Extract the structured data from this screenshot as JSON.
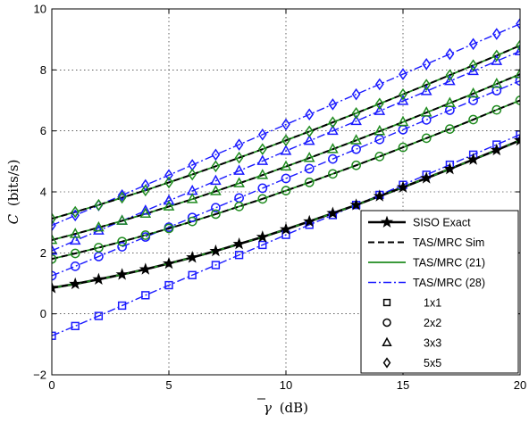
{
  "chart_data": {
    "type": "line",
    "title": "",
    "xlabel_symbol": "γ",
    "xlabel_unit": "(dB)",
    "ylabel_symbol": "C",
    "ylabel_unit": "(bits/s)",
    "xlim": [
      0,
      20
    ],
    "ylim": [
      -2,
      10
    ],
    "xticks": [
      0,
      5,
      10,
      15,
      20
    ],
    "yticks": [
      -2,
      0,
      2,
      4,
      6,
      8,
      10
    ],
    "grid": true,
    "legend_position": "bottom-right",
    "x": [
      0,
      1,
      2,
      3,
      4,
      5,
      6,
      7,
      8,
      9,
      10,
      11,
      12,
      13,
      14,
      15,
      16,
      17,
      18,
      19,
      20
    ],
    "colors": {
      "siso": "#000000",
      "tas_sim": "#000000",
      "tas_21": "#1f8b1f",
      "tas_28": "#1a1aff"
    },
    "legend": [
      {
        "label": "SISO Exact",
        "style": "siso"
      },
      {
        "label": "TAS/MRC Sim",
        "style": "sim"
      },
      {
        "label": "TAS/MRC (21)",
        "style": "eq21"
      },
      {
        "label": "TAS/MRC (28)",
        "style": "eq28"
      },
      {
        "label": "1x1",
        "style": "square"
      },
      {
        "label": "2x2",
        "style": "circle"
      },
      {
        "label": "3x3",
        "style": "triangle"
      },
      {
        "label": "5x5",
        "style": "diamond"
      }
    ],
    "groups": [
      {
        "config": "1x1",
        "marker": "square",
        "exact": [
          0.85,
          0.98,
          1.13,
          1.29,
          1.46,
          1.65,
          1.85,
          2.06,
          2.29,
          2.52,
          2.77,
          3.03,
          3.3,
          3.57,
          3.86,
          4.15,
          4.45,
          4.75,
          5.06,
          5.37,
          5.69
        ],
        "approx28": [
          -0.72,
          -0.4,
          -0.07,
          0.27,
          0.61,
          0.94,
          1.27,
          1.6,
          1.93,
          2.26,
          2.59,
          2.92,
          3.24,
          3.57,
          3.9,
          4.23,
          4.56,
          4.89,
          5.22,
          5.55,
          5.88
        ]
      },
      {
        "config": "2x2",
        "marker": "circle",
        "exact": [
          1.8,
          1.98,
          2.17,
          2.37,
          2.58,
          2.8,
          3.03,
          3.27,
          3.52,
          3.77,
          4.04,
          4.31,
          4.59,
          4.87,
          5.16,
          5.46,
          5.76,
          6.06,
          6.37,
          6.69,
          7.0
        ],
        "approx28": [
          1.25,
          1.56,
          1.88,
          2.2,
          2.52,
          2.84,
          3.16,
          3.48,
          3.8,
          4.12,
          4.44,
          4.76,
          5.08,
          5.4,
          5.72,
          6.04,
          6.36,
          6.68,
          7.0,
          7.32,
          7.64
        ]
      },
      {
        "config": "3x3",
        "marker": "triangle",
        "exact": [
          2.42,
          2.62,
          2.83,
          3.05,
          3.28,
          3.52,
          3.76,
          4.02,
          4.28,
          4.55,
          4.83,
          5.11,
          5.4,
          5.69,
          5.99,
          6.29,
          6.6,
          6.91,
          7.22,
          7.54,
          7.86
        ],
        "approx28": [
          2.07,
          2.4,
          2.73,
          3.05,
          3.38,
          3.71,
          4.03,
          4.36,
          4.69,
          5.01,
          5.34,
          5.67,
          6.0,
          6.32,
          6.65,
          6.98,
          7.3,
          7.63,
          7.96,
          8.29,
          8.61
        ]
      },
      {
        "config": "5x5",
        "marker": "diamond",
        "exact": [
          3.12,
          3.34,
          3.57,
          3.81,
          4.05,
          4.31,
          4.57,
          4.84,
          5.12,
          5.4,
          5.69,
          5.98,
          6.28,
          6.58,
          6.89,
          7.2,
          7.51,
          7.83,
          8.15,
          8.47,
          8.8
        ],
        "approx28": [
          2.9,
          3.23,
          3.56,
          3.89,
          4.22,
          4.55,
          4.88,
          5.22,
          5.55,
          5.88,
          6.21,
          6.54,
          6.87,
          7.2,
          7.53,
          7.86,
          8.19,
          8.52,
          8.85,
          9.18,
          9.51
        ]
      }
    ]
  }
}
